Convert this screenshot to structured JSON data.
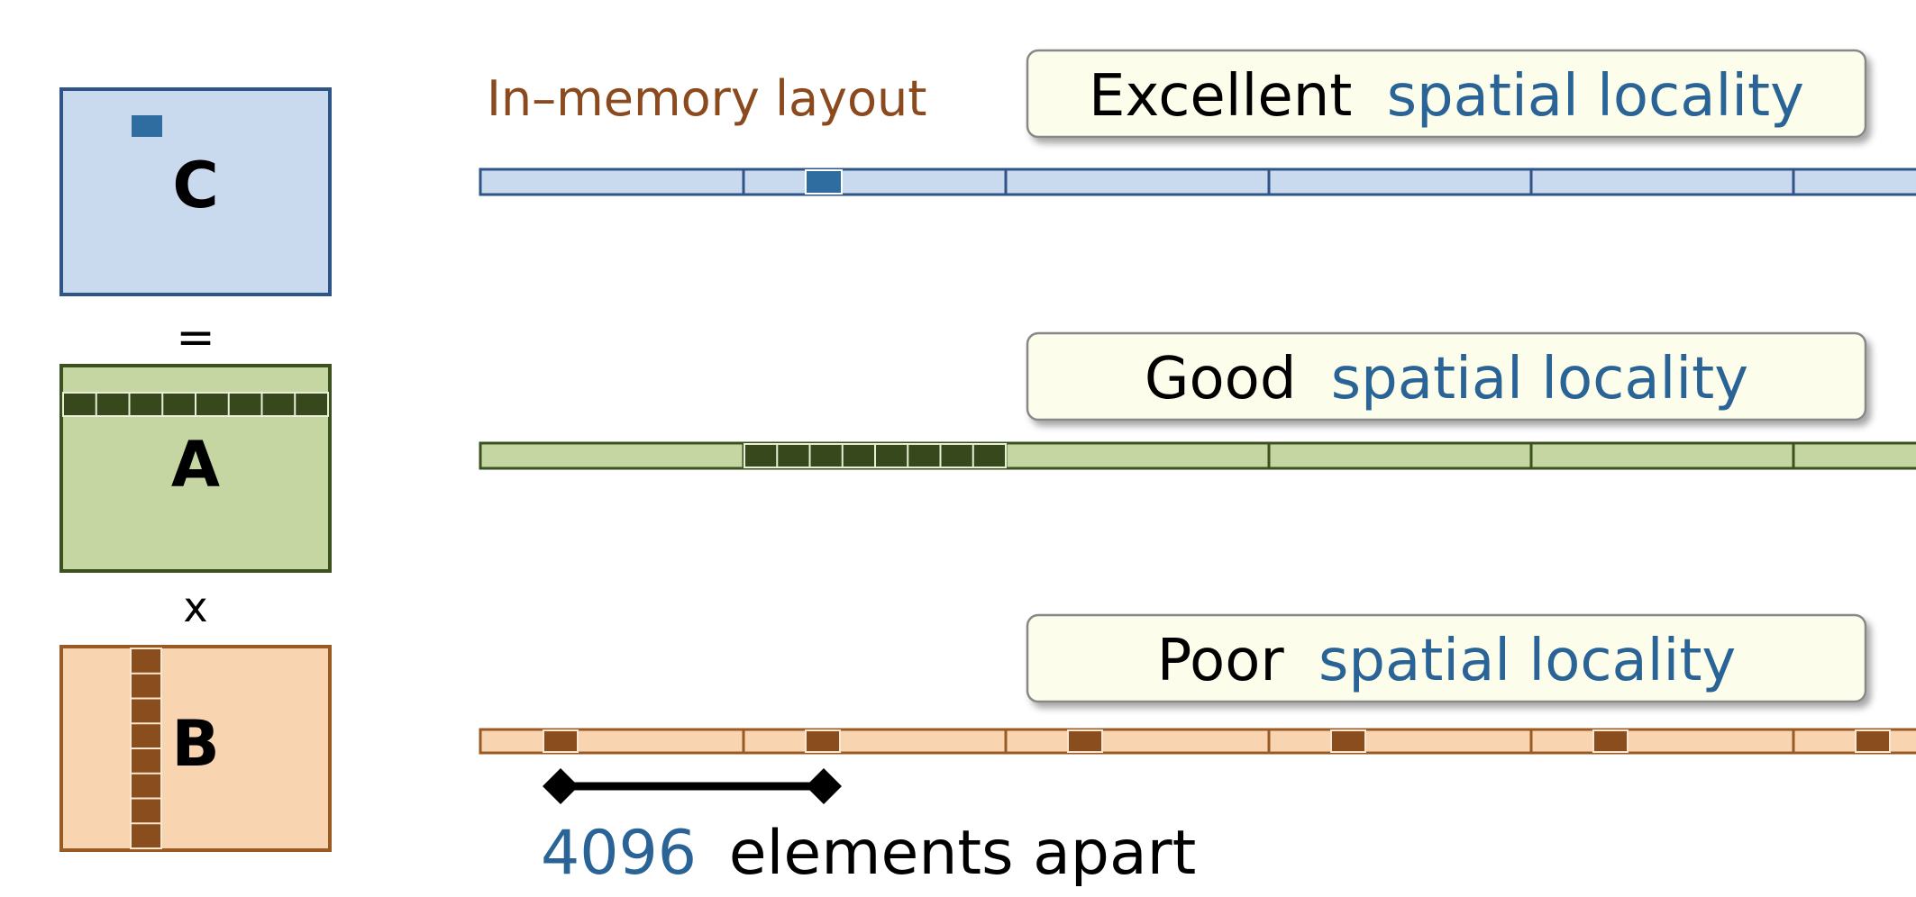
{
  "matrices": {
    "c": {
      "label": "C",
      "fill": "#c9d9ee",
      "stroke": "#2f5588",
      "mark": "#2f6da1"
    },
    "a": {
      "label": "A",
      "fill": "#c5d6a3",
      "stroke": "#3b5220",
      "mark": "#36481c"
    },
    "b": {
      "label": "B",
      "fill": "#f8d4b0",
      "stroke": "#9a5a24",
      "mark": "#8a4d1e"
    }
  },
  "operators": {
    "equals": "=",
    "times": "x"
  },
  "memory_label": "In–memory layout",
  "rows": [
    {
      "quality": "Excellent",
      "suffix": "spatial locality"
    },
    {
      "quality": "Good",
      "suffix": "spatial locality"
    },
    {
      "quality": "Poor",
      "suffix": "spatial locality"
    }
  ],
  "stride": {
    "number": "4096",
    "text": "elements apart"
  },
  "colors": {
    "accent_blue": "#2a6496",
    "label_brown": "#8b4a1e",
    "callout_fill": "#fdfdeb",
    "callout_stroke": "#888888"
  }
}
